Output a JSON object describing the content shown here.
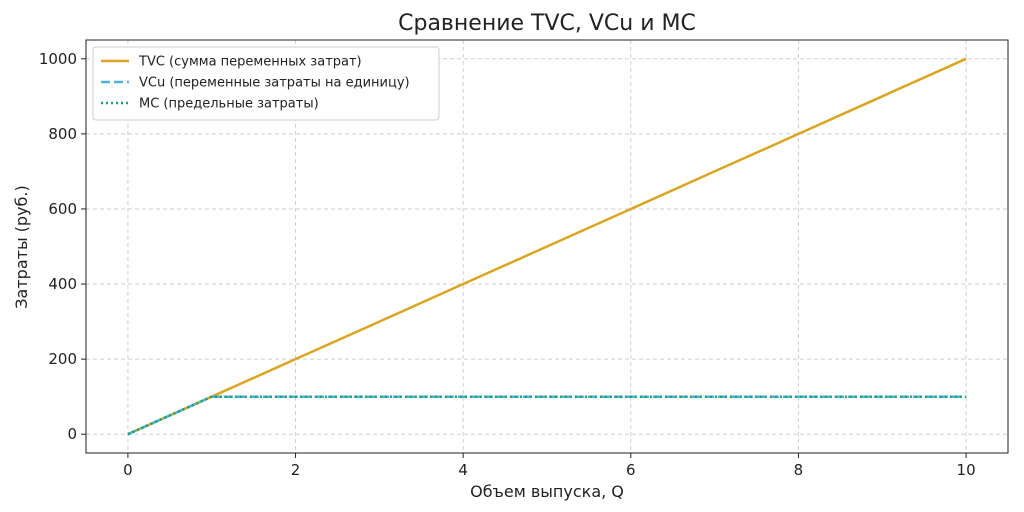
{
  "chart_data": {
    "type": "line",
    "title": "Сравнение TVC, VCu и MC",
    "xlabel": "Объем выпуска, Q",
    "ylabel": "Затраты (руб.)",
    "xlim": [
      -0.5,
      10.5
    ],
    "ylim": [
      -50,
      1050
    ],
    "xticks": [
      0,
      2,
      4,
      6,
      8,
      10
    ],
    "yticks": [
      0,
      200,
      400,
      600,
      800,
      1000
    ],
    "grid": true,
    "legend_position": "top-left",
    "series": [
      {
        "name": "TVC (сумма переменных затрат)",
        "color": "#DAA520",
        "dash": "solid",
        "x": [
          0,
          1,
          2,
          3,
          4,
          5,
          6,
          7,
          8,
          9,
          10
        ],
        "y": [
          0,
          100,
          200,
          300,
          400,
          500,
          600,
          700,
          800,
          900,
          1000
        ]
      },
      {
        "name": "VCu (переменные затраты на единицу)",
        "color": "#4BB4D6",
        "dash": "dashed",
        "x": [
          0,
          1,
          2,
          3,
          4,
          5,
          6,
          7,
          8,
          9,
          10
        ],
        "y": [
          0,
          100,
          100,
          100,
          100,
          100,
          100,
          100,
          100,
          100,
          100
        ]
      },
      {
        "name": "MC (предельные затраты)",
        "color": "#1A9E77",
        "dash": "dotted",
        "x": [
          0,
          1,
          2,
          3,
          4,
          5,
          6,
          7,
          8,
          9,
          10
        ],
        "y": [
          0,
          100,
          100,
          100,
          100,
          100,
          100,
          100,
          100,
          100,
          100
        ]
      }
    ]
  }
}
